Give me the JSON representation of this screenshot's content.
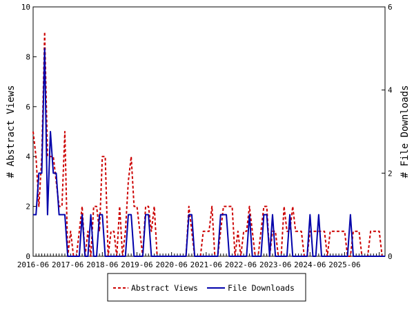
{
  "chart_data": {
    "type": "line",
    "ylabel_left": "# Abstract Views",
    "ylabel_right": "# File Downloads",
    "xlabel": "",
    "x_tick_labels": [
      "2016-06",
      "2017-06",
      "2018-06",
      "2019-06",
      "2020-06",
      "2021-06",
      "2022-06",
      "2023-06",
      "2024-06",
      "2025-06"
    ],
    "ylim_left": [
      0,
      10
    ],
    "yticks_left": [
      "0",
      "2",
      "4",
      "6",
      "8",
      "10"
    ],
    "ylim_right": [
      0,
      6
    ],
    "yticks_right": [
      "0",
      "2",
      "4",
      "6"
    ],
    "grid": false,
    "legend_position": "bottom",
    "x_start": "2016-06",
    "series": [
      {
        "name": "Abstract Views",
        "axis": "left",
        "color": "#cc0000",
        "style": "dashed",
        "values": [
          5,
          4,
          2,
          4,
          9,
          4,
          4,
          4,
          3,
          2,
          2,
          5,
          0,
          1,
          0,
          0,
          1,
          2,
          0,
          1,
          0,
          2,
          2,
          1,
          4,
          4,
          0,
          1,
          1,
          0,
          2,
          0,
          1,
          3,
          4,
          2,
          2,
          1,
          0,
          2,
          2,
          1,
          2,
          0,
          0,
          0,
          0,
          0,
          0,
          0,
          0,
          0,
          0,
          0,
          2,
          1,
          0,
          0,
          0,
          1,
          1,
          1,
          2,
          0,
          0,
          1,
          2,
          2,
          2,
          2,
          0,
          1,
          0,
          1,
          1,
          2,
          1,
          0,
          0,
          1,
          2,
          2,
          0,
          1,
          1,
          0,
          0,
          2,
          1,
          1,
          2,
          1,
          1,
          1,
          0,
          0,
          1,
          1,
          1,
          1,
          1,
          1,
          0,
          1,
          1,
          1,
          1,
          1,
          1,
          0,
          0,
          1,
          1,
          1,
          0,
          0,
          0,
          1,
          1,
          1,
          1,
          0,
          0
        ]
      },
      {
        "name": "File Downloads",
        "axis": "right",
        "color": "#0000aa",
        "style": "solid",
        "values": [
          1,
          1,
          2,
          2,
          5,
          1,
          3,
          2,
          2,
          1,
          1,
          1,
          0,
          0,
          0,
          0,
          0,
          1,
          0,
          0,
          1,
          0,
          0,
          1,
          1,
          0,
          0,
          0,
          0,
          0,
          0,
          0,
          0,
          1,
          1,
          0,
          0,
          0,
          0,
          1,
          1,
          0,
          0,
          0,
          0,
          0,
          0,
          0,
          0,
          0,
          0,
          0,
          0,
          0,
          1,
          1,
          0,
          0,
          0,
          0,
          0,
          0,
          0,
          0,
          0,
          1,
          1,
          1,
          0,
          0,
          0,
          0,
          0,
          0,
          0,
          1,
          0,
          0,
          0,
          0,
          1,
          1,
          0,
          1,
          0,
          0,
          0,
          0,
          0,
          1,
          0,
          0,
          0,
          0,
          0,
          0,
          1,
          0,
          0,
          1,
          0,
          0,
          0,
          0,
          0,
          0,
          0,
          0,
          0,
          0,
          1,
          0,
          0,
          0,
          0,
          0,
          0,
          0,
          0,
          0,
          0,
          0,
          0
        ]
      }
    ]
  }
}
